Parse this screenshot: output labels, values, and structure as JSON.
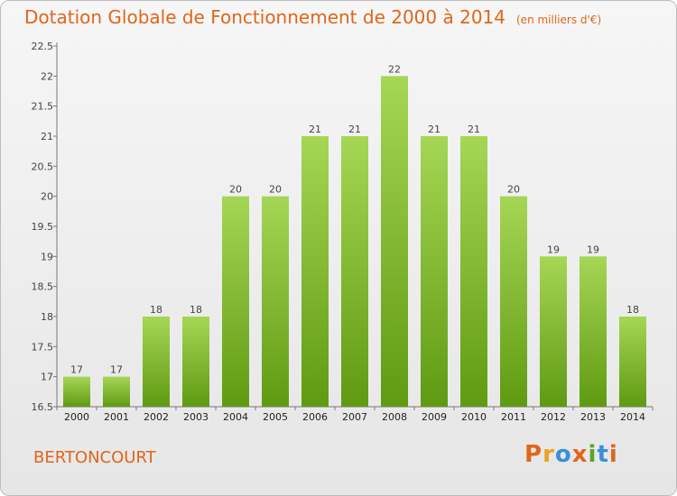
{
  "header": {
    "title": "Dotation Globale de Fonctionnement de 2000 à 2014",
    "subtitle": "(en milliers d'€)"
  },
  "footer": {
    "place": "BERTONCOURT",
    "logo": "Proxiti"
  },
  "colors": {
    "accent": "#e0661b",
    "bar_light": "#a6d655",
    "bar_dark": "#5f9a12"
  },
  "chart_data": {
    "type": "bar",
    "categories": [
      "2000",
      "2001",
      "2002",
      "2003",
      "2004",
      "2005",
      "2006",
      "2007",
      "2008",
      "2009",
      "2010",
      "2011",
      "2012",
      "2013",
      "2014"
    ],
    "values": [
      17,
      17,
      18,
      18,
      20,
      20,
      21,
      21,
      22,
      21,
      21,
      20,
      19,
      19,
      18
    ],
    "data_labels": [
      "17",
      "17",
      "18",
      "18",
      "20",
      "20",
      "21",
      "21",
      "22",
      "21",
      "21",
      "20",
      "19",
      "19",
      "18"
    ],
    "ylim": [
      16.5,
      22.5
    ],
    "yticks": [
      "16.5",
      "17",
      "17.5",
      "18",
      "18.5",
      "19",
      "19.5",
      "20",
      "20.5",
      "21",
      "21.5",
      "22",
      "22.5"
    ],
    "grid": false
  }
}
